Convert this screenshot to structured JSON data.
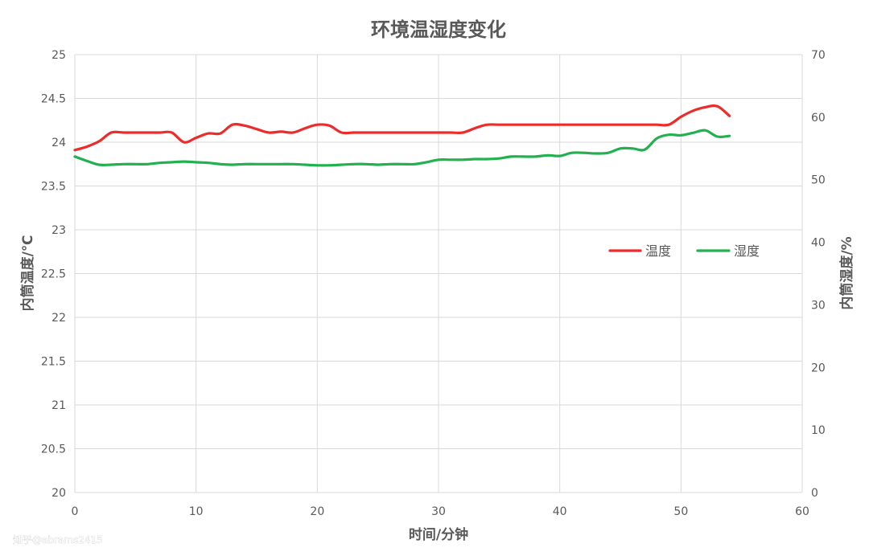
{
  "chart_data": {
    "type": "line",
    "title": "环境温湿度变化",
    "xlabel": "时间/分钟",
    "ylabel_left": "内筒温度/℃",
    "ylabel_right": "内筒湿度/%",
    "xlim": [
      0,
      60
    ],
    "ylim_left": [
      20,
      25
    ],
    "ylim_right": [
      0,
      70
    ],
    "x_ticks": [
      "0",
      "10",
      "20",
      "30",
      "40",
      "50",
      "60"
    ],
    "y_ticks_left": [
      "20",
      "20.5",
      "21",
      "21.5",
      "22",
      "22.5",
      "23",
      "23.5",
      "24",
      "24.5",
      "25"
    ],
    "y_ticks_right": [
      "0",
      "10",
      "20",
      "30",
      "40",
      "50",
      "60",
      "70"
    ],
    "grid": true,
    "smooth": true,
    "legend_position": "right",
    "series": [
      {
        "name": "温度",
        "axis": "left",
        "color": "#ee2b2b",
        "x": [
          0,
          1,
          2,
          3,
          4,
          5,
          6,
          7,
          8,
          9,
          10,
          11,
          12,
          13,
          14,
          15,
          16,
          17,
          18,
          19,
          20,
          21,
          22,
          23,
          24,
          25,
          26,
          27,
          28,
          29,
          30,
          31,
          32,
          33,
          34,
          35,
          36,
          37,
          38,
          39,
          40,
          41,
          42,
          43,
          44,
          45,
          46,
          47,
          48,
          49,
          50,
          51,
          52,
          53,
          54
        ],
        "values": [
          23.91,
          23.95,
          24.01,
          24.11,
          24.11,
          24.11,
          24.11,
          24.11,
          24.11,
          24.0,
          24.05,
          24.1,
          24.1,
          24.2,
          24.19,
          24.15,
          24.11,
          24.12,
          24.11,
          24.16,
          24.2,
          24.19,
          24.11,
          24.11,
          24.11,
          24.11,
          24.11,
          24.11,
          24.11,
          24.11,
          24.11,
          24.11,
          24.11,
          24.16,
          24.2,
          24.2,
          24.2,
          24.2,
          24.2,
          24.2,
          24.2,
          24.2,
          24.2,
          24.2,
          24.2,
          24.2,
          24.2,
          24.2,
          24.2,
          24.2,
          24.29,
          24.36,
          24.4,
          24.41,
          24.3
        ]
      },
      {
        "name": "湿度",
        "axis": "right",
        "color": "#21b14f",
        "x": [
          0,
          1,
          2,
          3,
          4,
          5,
          6,
          7,
          8,
          9,
          10,
          11,
          12,
          13,
          14,
          15,
          16,
          17,
          18,
          19,
          20,
          21,
          22,
          23,
          24,
          25,
          26,
          27,
          28,
          29,
          30,
          31,
          32,
          33,
          34,
          35,
          36,
          37,
          38,
          39,
          40,
          41,
          42,
          43,
          44,
          45,
          46,
          47,
          48,
          49,
          50,
          51,
          52,
          53,
          54
        ],
        "values": [
          53.7,
          53.0,
          52.4,
          52.4,
          52.5,
          52.5,
          52.5,
          52.7,
          52.8,
          52.9,
          52.8,
          52.7,
          52.5,
          52.4,
          52.5,
          52.5,
          52.5,
          52.5,
          52.5,
          52.4,
          52.3,
          52.3,
          52.4,
          52.5,
          52.5,
          52.4,
          52.5,
          52.5,
          52.5,
          52.8,
          53.2,
          53.2,
          53.2,
          53.3,
          53.3,
          53.4,
          53.7,
          53.7,
          53.7,
          53.9,
          53.8,
          54.3,
          54.3,
          54.2,
          54.3,
          55.0,
          55.0,
          54.8,
          56.6,
          57.2,
          57.1,
          57.5,
          57.9,
          56.9,
          57.0
        ]
      }
    ]
  },
  "watermark": "知乎@abrams2415"
}
